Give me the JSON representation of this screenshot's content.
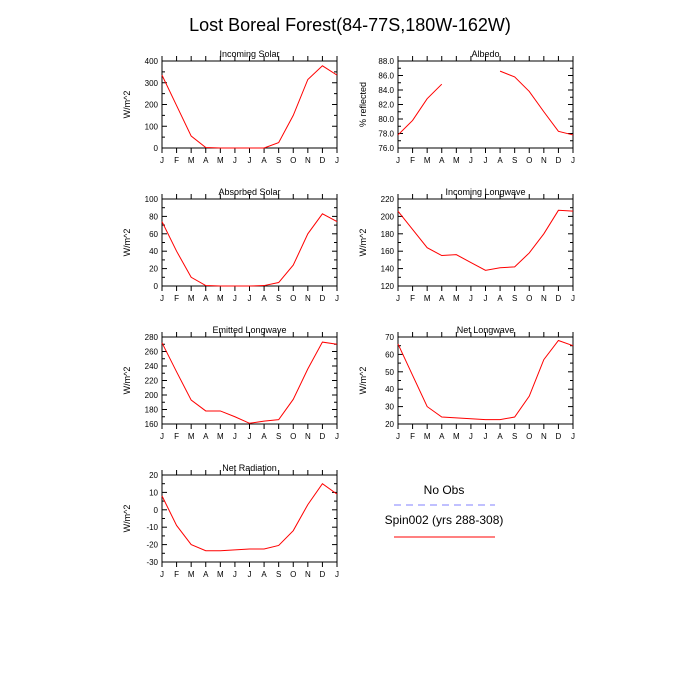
{
  "page_title": "Lost Boreal Forest(84-77S,180W-162W)",
  "colors": {
    "model": "#ff0000",
    "obs": "#8080ff",
    "axis": "#000000"
  },
  "legend": {
    "obs_label": "No Obs",
    "model_label": "Spin002 (yrs 288-308)"
  },
  "chart_data": [
    {
      "type": "line",
      "title": "Incoming Solar",
      "ylabel": "W/m^2",
      "x": [
        "J",
        "F",
        "M",
        "A",
        "M",
        "J",
        "J",
        "A",
        "S",
        "O",
        "N",
        "D",
        "J"
      ],
      "ylim": [
        0,
        400
      ],
      "yticks": [
        0,
        100,
        200,
        300,
        400
      ],
      "ytick_labels": [
        "0",
        "100",
        "200",
        "300",
        "400"
      ],
      "series": [
        {
          "values": [
            335,
            195,
            55,
            2,
            0,
            0,
            0,
            0,
            25,
            150,
            315,
            378,
            335
          ]
        }
      ]
    },
    {
      "type": "line",
      "title": "Albedo",
      "ylabel": "% reflected",
      "x": [
        "J",
        "F",
        "M",
        "A",
        "M",
        "J",
        "J",
        "A",
        "S",
        "O",
        "N",
        "D",
        "J"
      ],
      "ylim": [
        76,
        88
      ],
      "yticks": [
        76,
        78,
        80,
        82,
        84,
        86,
        88
      ],
      "ytick_labels": [
        "76.0",
        "78.0",
        "80.0",
        "82.0",
        "84.0",
        "86.0",
        "88.0"
      ],
      "series": [
        {
          "values": [
            77.8,
            79.8,
            82.8,
            84.8,
            null,
            null,
            null,
            86.6,
            85.8,
            83.8,
            81.0,
            78.3,
            77.8
          ]
        }
      ]
    },
    {
      "type": "line",
      "title": "Absorbed Solar",
      "ylabel": "W/m^2",
      "x": [
        "J",
        "F",
        "M",
        "A",
        "M",
        "J",
        "J",
        "A",
        "S",
        "O",
        "N",
        "D",
        "J"
      ],
      "ylim": [
        0,
        100
      ],
      "yticks": [
        0,
        20,
        40,
        60,
        80,
        100
      ],
      "ytick_labels": [
        "0",
        "20",
        "40",
        "60",
        "80",
        "100"
      ],
      "series": [
        {
          "values": [
            74,
            40,
            10,
            0.5,
            0,
            0,
            0,
            0.5,
            4,
            24,
            60,
            83,
            74
          ]
        }
      ]
    },
    {
      "type": "line",
      "title": "Incoming Longwave",
      "ylabel": "W/m^2",
      "x": [
        "J",
        "F",
        "M",
        "A",
        "M",
        "J",
        "J",
        "A",
        "S",
        "O",
        "N",
        "D",
        "J"
      ],
      "ylim": [
        120,
        220
      ],
      "yticks": [
        120,
        140,
        160,
        180,
        200,
        220
      ],
      "ytick_labels": [
        "120",
        "140",
        "160",
        "180",
        "200",
        "220"
      ],
      "series": [
        {
          "values": [
            206,
            185,
            164,
            155,
            156,
            147,
            138,
            141,
            142,
            158,
            180,
            207,
            206
          ]
        }
      ]
    },
    {
      "type": "line",
      "title": "Emitted Longwave",
      "ylabel": "W/m^2",
      "x": [
        "J",
        "F",
        "M",
        "A",
        "M",
        "J",
        "J",
        "A",
        "S",
        "O",
        "N",
        "D",
        "J"
      ],
      "ylim": [
        160,
        280
      ],
      "yticks": [
        160,
        180,
        200,
        220,
        240,
        260,
        280
      ],
      "ytick_labels": [
        "160",
        "180",
        "200",
        "220",
        "240",
        "260",
        "280"
      ],
      "series": [
        {
          "values": [
            272,
            232,
            193,
            178,
            178,
            170,
            161,
            164,
            166,
            194,
            236,
            273,
            270
          ]
        }
      ]
    },
    {
      "type": "line",
      "title": "Net Longwave",
      "ylabel": "W/m^2",
      "x": [
        "J",
        "F",
        "M",
        "A",
        "M",
        "J",
        "J",
        "A",
        "S",
        "O",
        "N",
        "D",
        "J"
      ],
      "ylim": [
        20,
        70
      ],
      "yticks": [
        20,
        30,
        40,
        50,
        60,
        70
      ],
      "ytick_labels": [
        "20",
        "30",
        "40",
        "50",
        "60",
        "70"
      ],
      "series": [
        {
          "values": [
            66,
            48,
            30,
            24,
            23.5,
            23,
            22.5,
            22.5,
            24,
            36,
            57,
            68,
            65
          ]
        }
      ]
    },
    {
      "type": "line",
      "title": "Net Radiation",
      "ylabel": "W/m^2",
      "x": [
        "J",
        "F",
        "M",
        "A",
        "M",
        "J",
        "J",
        "A",
        "S",
        "O",
        "N",
        "D",
        "J"
      ],
      "ylim": [
        -30,
        20
      ],
      "yticks": [
        -30,
        -20,
        -10,
        0,
        10,
        20
      ],
      "ytick_labels": [
        "-30",
        "-20",
        "-10",
        "0",
        "10",
        "20"
      ],
      "series": [
        {
          "values": [
            8,
            -9,
            -20,
            -23.5,
            -23.5,
            -23,
            -22.5,
            -22.5,
            -20.5,
            -12,
            3,
            15,
            9
          ]
        }
      ]
    }
  ]
}
